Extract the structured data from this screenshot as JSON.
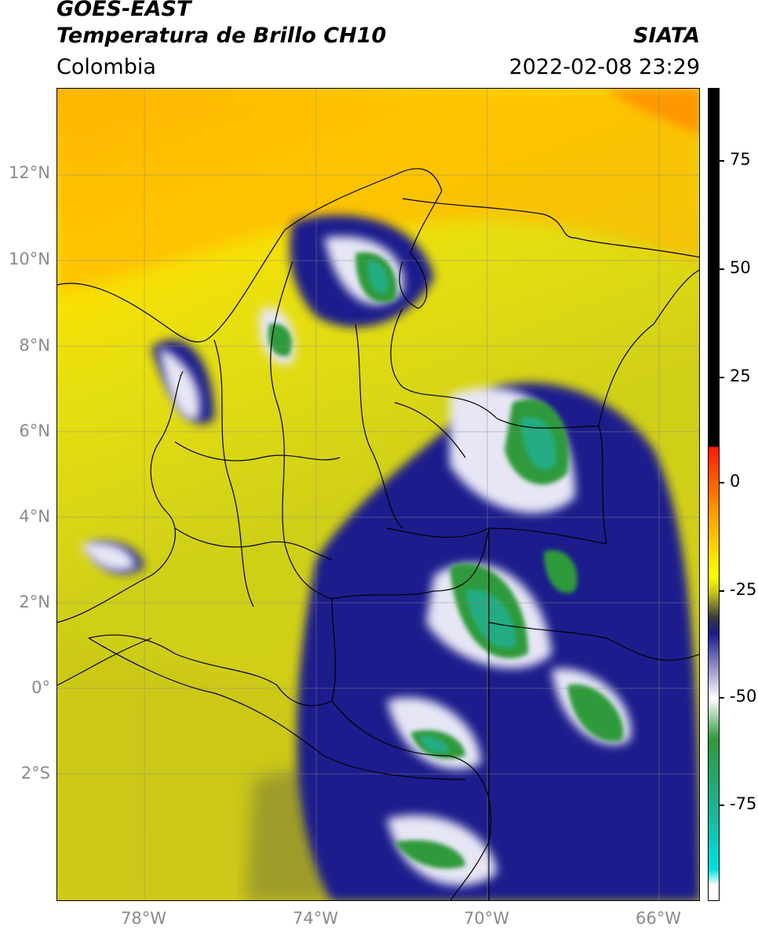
{
  "header": {
    "satellite": "GOES-EAST",
    "product": "Temperatura de Brillo CH10",
    "brand": "SIATA",
    "region": "Colombia",
    "timestamp": "2022-02-08 23:29"
  },
  "map": {
    "lat_labels": [
      "12°N",
      "10°N",
      "8°N",
      "6°N",
      "4°N",
      "2°N",
      "0°",
      "2°S"
    ],
    "lon_labels": [
      "78°W",
      "74°W",
      "70°W",
      "66°W"
    ],
    "bounds": {
      "lon_min": -80,
      "lon_max": -65,
      "lat_min": -5,
      "lat_max": 14
    }
  },
  "colorbar": {
    "tick_labels": [
      "75",
      "50",
      "25",
      "0",
      "-25",
      "-50",
      "-75"
    ],
    "range": [
      -95,
      90
    ],
    "colors": {
      "black": "#000000",
      "red": "#ff2a00",
      "orange": "#ff9a00",
      "yellow": "#ffff00",
      "olive": "#8a8a20",
      "navy": "#1a1a8c",
      "white": "#ffffff",
      "green": "#2e9a3a",
      "teal": "#20c0a0",
      "cyan": "#00e0e0"
    }
  }
}
